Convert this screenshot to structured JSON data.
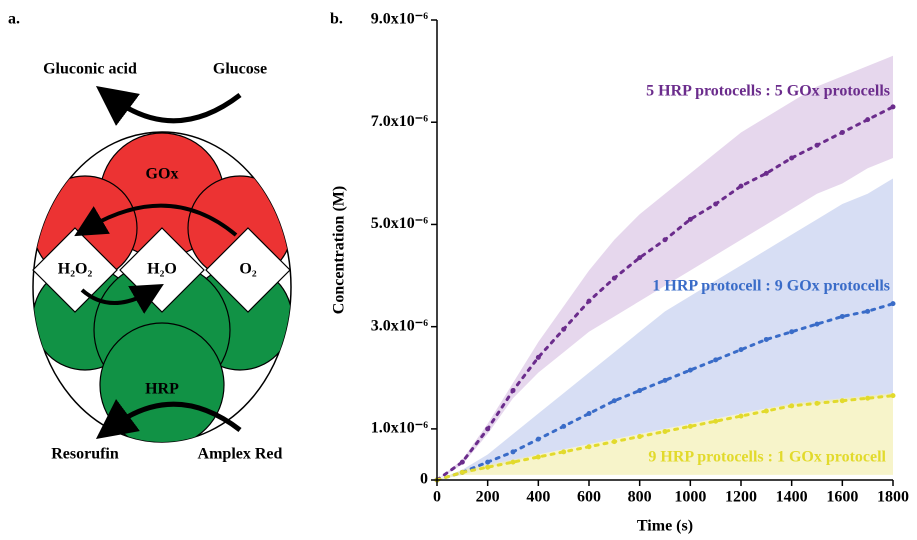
{
  "diagram": {
    "panel_label": "a.",
    "top_left": "Gluconic acid",
    "top_right": "Glucose",
    "top_enzyme": "GOx",
    "left_node": "H₂O₂",
    "middle_node": "H₂O",
    "right_node": "O₂",
    "bottom_enzyme": "HRP",
    "bottom_left": "Resorufin",
    "bottom_right": "Amplex Red"
  },
  "chart_data": {
    "type": "line",
    "panel_label": "b.",
    "x_label": "Time (s)",
    "y_label": "Concentration (M)",
    "x": [
      0,
      100,
      200,
      300,
      400,
      500,
      600,
      700,
      800,
      900,
      1000,
      1100,
      1200,
      1300,
      1400,
      1500,
      1600,
      1700,
      1800
    ],
    "xlim": [
      0,
      1800
    ],
    "xticks": [
      0,
      200,
      400,
      600,
      800,
      1000,
      1200,
      1400,
      1600,
      1800
    ],
    "ylim": [
      0,
      9e-06
    ],
    "yticks": [
      0,
      {
        "value": 1e-06,
        "label": "1.0x10⁻⁶"
      },
      {
        "value": 3e-06,
        "label": "3.0x10⁻⁶"
      },
      {
        "value": 5e-06,
        "label": "5.0x10⁻⁶"
      },
      {
        "value": 7e-06,
        "label": "7.0x10⁻⁶"
      },
      {
        "value": 9e-06,
        "label": "9.0x10⁻⁶"
      }
    ],
    "series": [
      {
        "name": "5 HRP protocells : 5 GOx protocells",
        "color": "#6b2c8c",
        "band_color": "#dcc6e6",
        "values": [
          0,
          3.5e-07,
          1e-06,
          1.75e-06,
          2.4e-06,
          2.95e-06,
          3.5e-06,
          3.95e-06,
          4.35e-06,
          4.7e-06,
          5.1e-06,
          5.4e-06,
          5.75e-06,
          6e-06,
          6.3e-06,
          6.55e-06,
          6.8e-06,
          7.05e-06,
          7.3e-06
        ],
        "upper": [
          0,
          4e-07,
          1.1e-06,
          1.9e-06,
          2.7e-06,
          3.4e-06,
          4.1e-06,
          4.7e-06,
          5.2e-06,
          5.6e-06,
          6e-06,
          6.4e-06,
          6.8e-06,
          7.1e-06,
          7.4e-06,
          7.7e-06,
          7.9e-06,
          8.1e-06,
          8.3e-06
        ],
        "lower": [
          0,
          3e-07,
          9e-07,
          1.6e-06,
          2.1e-06,
          2.5e-06,
          2.9e-06,
          3.2e-06,
          3.5e-06,
          3.8e-06,
          4.1e-06,
          4.4e-06,
          4.7e-06,
          5e-06,
          5.3e-06,
          5.6e-06,
          5.8e-06,
          6.1e-06,
          6.3e-06
        ]
      },
      {
        "name": "1 HRP protocell : 9 GOx protocells",
        "color": "#3a6cc8",
        "band_color": "#c6d0ef",
        "values": [
          0,
          1.5e-07,
          3.5e-07,
          5.5e-07,
          8e-07,
          1.05e-06,
          1.3e-06,
          1.55e-06,
          1.75e-06,
          1.95e-06,
          2.15e-06,
          2.35e-06,
          2.55e-06,
          2.75e-06,
          2.9e-06,
          3.05e-06,
          3.2e-06,
          3.3e-06,
          3.45e-06
        ],
        "upper": [
          0,
          2e-07,
          5e-07,
          9e-07,
          1.3e-06,
          1.7e-06,
          2.1e-06,
          2.5e-06,
          2.9e-06,
          3.3e-06,
          3.6e-06,
          3.9e-06,
          4.2e-06,
          4.5e-06,
          4.8e-06,
          5.1e-06,
          5.4e-06,
          5.6e-06,
          5.9e-06
        ],
        "lower": [
          0,
          1e-07,
          2.5e-07,
          3.5e-07,
          5e-07,
          6e-07,
          7e-07,
          8e-07,
          9e-07,
          1e-06,
          1.1e-06,
          1.2e-06,
          1.3e-06,
          1.4e-06,
          1.45e-06,
          1.5e-06,
          1.55e-06,
          1.6e-06,
          1.65e-06
        ]
      },
      {
        "name": "9 HRP protocells : 1 GOx protocell",
        "color": "#e2da2c",
        "band_color": "#f3efb4",
        "values": [
          0,
          1.5e-07,
          2.5e-07,
          3.5e-07,
          4.5e-07,
          5.5e-07,
          6.5e-07,
          7.5e-07,
          8.5e-07,
          9.5e-07,
          1.05e-06,
          1.15e-06,
          1.25e-06,
          1.35e-06,
          1.45e-06,
          1.5e-06,
          1.55e-06,
          1.6e-06,
          1.65e-06
        ],
        "upper": [
          0,
          2e-07,
          3e-07,
          4e-07,
          5e-07,
          6e-07,
          7e-07,
          8e-07,
          9e-07,
          1e-06,
          1.1e-06,
          1.2e-06,
          1.3e-06,
          1.4e-06,
          1.5e-06,
          1.55e-06,
          1.6e-06,
          1.65e-06,
          1.7e-06
        ],
        "lower": [
          0,
          1e-07,
          1e-07,
          1e-07,
          1e-07,
          1e-07,
          1e-07,
          1e-07,
          1e-07,
          1e-07,
          1e-07,
          1e-07,
          1e-07,
          1e-07,
          1e-07,
          1e-07,
          1e-07,
          1e-07,
          1e-07
        ]
      }
    ]
  }
}
